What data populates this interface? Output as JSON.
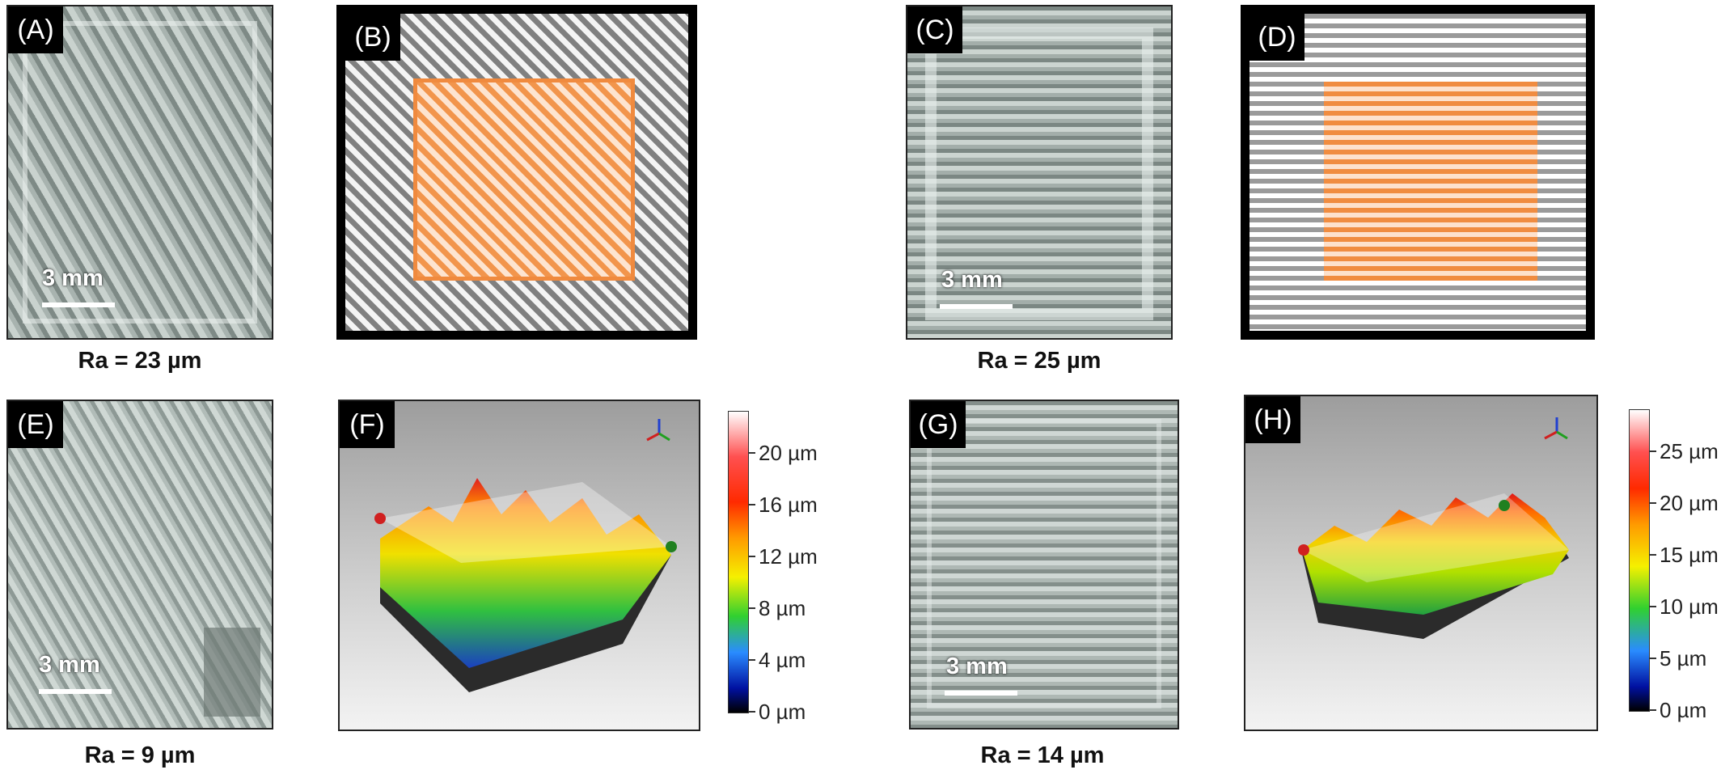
{
  "panels": {
    "A": {
      "tag": "(A)",
      "scale": "3 mm",
      "ra": "Ra = 23 µm"
    },
    "B": {
      "tag": "(B)"
    },
    "C": {
      "tag": "(C)",
      "scale": "3 mm",
      "ra": "Ra = 25 µm"
    },
    "D": {
      "tag": "(D)"
    },
    "E": {
      "tag": "(E)",
      "scale": "3 mm",
      "ra": "Ra = 9 µm"
    },
    "F": {
      "tag": "(F)",
      "colorbar": [
        "20 µm",
        "16 µm",
        "12 µm",
        "8 µm",
        "4 µm",
        "0 µm"
      ]
    },
    "G": {
      "tag": "(G)",
      "scale": "3 mm",
      "ra": "Ra = 14 µm"
    },
    "H": {
      "tag": "(H)",
      "colorbar": [
        "25 µm",
        "20 µm",
        "15 µm",
        "10 µm",
        "5 µm",
        "0 µm"
      ]
    }
  },
  "colors": {
    "outer_hatch": "#808080",
    "inner_hatch": "#f08a3e",
    "colormap": [
      "#ffffff",
      "#ff2020",
      "#ff9a00",
      "#f5f000",
      "#30d030",
      "#2a8cff",
      "#0010a0",
      "#000000"
    ]
  }
}
